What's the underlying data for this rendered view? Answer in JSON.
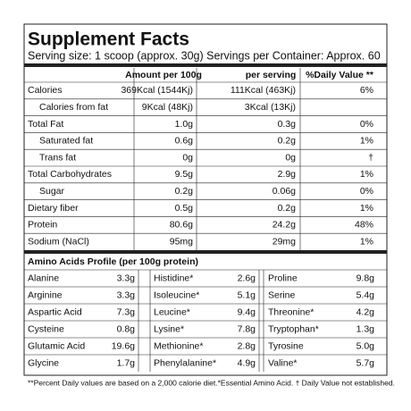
{
  "title": "Supplement Facts",
  "serving": "Serving size: 1 scoop (approx. 30g) Servings per Container: Approx. 60",
  "nutrition": {
    "headers": [
      "Amount per 100g",
      "per serving",
      "%Daily Value **"
    ],
    "rows": [
      [
        "Calories",
        "369Kcal (1544Kj)",
        "111Kcal (463Kj)",
        "6%"
      ],
      [
        "Calories from fat",
        "9Kcal (48Kj)",
        "3Kcal (13Kj)",
        null
      ],
      [
        "Total Fat",
        "1.0g",
        "0.3g",
        "0%"
      ],
      [
        "Saturated fat",
        "0.6g",
        "0.2g",
        "1%"
      ],
      [
        "Trans fat",
        "0g",
        "0g",
        "†"
      ],
      [
        "Total Carbohydrates",
        "9.5g",
        "2.9g",
        "1%"
      ],
      [
        "Sugar",
        "0.2g",
        "0.06g",
        "0%"
      ],
      [
        "Dietary fiber",
        "0.5g",
        "0.2g",
        "1%"
      ],
      [
        "Protein",
        "80.6g",
        "24.2g",
        "48%"
      ],
      [
        "Sodium (NaCl)",
        "95mg",
        "29mg",
        "1%"
      ]
    ]
  },
  "amino": {
    "title": "Amino Acids Profile (per 100g protein)",
    "rows": [
      [
        [
          "Alanine",
          "3.3g"
        ],
        [
          "Histidine*",
          "2.6g"
        ],
        [
          "Proline",
          "9.8g"
        ]
      ],
      [
        [
          "Arginine",
          "3.3g"
        ],
        [
          "Isoleucine*",
          "5.1g"
        ],
        [
          "Serine",
          "5.4g"
        ]
      ],
      [
        [
          "Aspartic Acid",
          "7.3g"
        ],
        [
          "Leucine*",
          "9.4g"
        ],
        [
          "Threonine*",
          "4.2g"
        ]
      ],
      [
        [
          "Cysteine",
          "0.8g"
        ],
        [
          "Lysine*",
          "7.8g"
        ],
        [
          "Tryptophan*",
          "1.3g"
        ]
      ],
      [
        [
          "Glutamic Acid",
          "19.6g"
        ],
        [
          "Methionine*",
          "2.8g"
        ],
        [
          "Tyrosine",
          "5.0g"
        ]
      ],
      [
        [
          "Glycine",
          "1.7g"
        ],
        [
          "Phenylalanine*",
          "4.9g"
        ],
        [
          "Valine*",
          "5.7g"
        ]
      ]
    ]
  },
  "footnote": "**Percent Daily values are based on a 2,000 calorie diet.*Essential Amino Acid. † Daily Value not established."
}
